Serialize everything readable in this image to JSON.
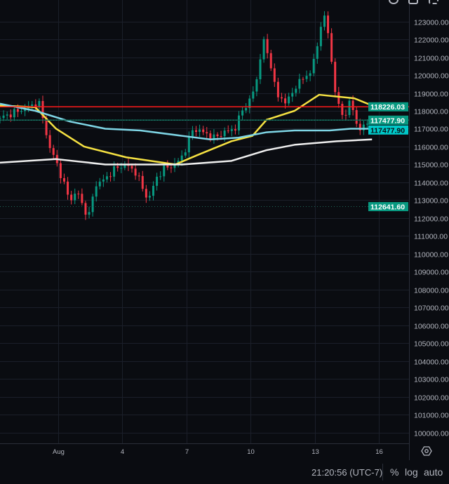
{
  "toolbar": {
    "icons": [
      "settings-icon",
      "camera-icon",
      "fullscreen-icon"
    ]
  },
  "bottom_bar": {
    "clock": "21:20:56 (UTC-7)",
    "percent_label": "%",
    "log_label": "log",
    "auto_label": "auto"
  },
  "colors": {
    "background": "#0a0c11",
    "grid": "#1b1f2a",
    "up": "#089981",
    "down": "#f23645",
    "ma_yellow": "#f5e142",
    "ma_cyan": "#7fd6e6",
    "ma_white": "#f0f0f0",
    "hline_red": "#ff1a1a",
    "hline_green": "#0f5f4e",
    "label_green": "#089981",
    "label_cyan": "#00c8c8"
  },
  "chart_data": {
    "type": "candlestick",
    "title": "",
    "xlabel": "",
    "ylabel": "",
    "x_unit": "day of August",
    "xlim": [
      -1.72,
      17.4
    ],
    "ylim": [
      99400,
      124200
    ],
    "x_ticks": [
      {
        "value": 1,
        "label": "Aug"
      },
      {
        "value": 4,
        "label": "4"
      },
      {
        "value": 7,
        "label": "7"
      },
      {
        "value": 10,
        "label": "10"
      },
      {
        "value": 13,
        "label": "13"
      },
      {
        "value": 16,
        "label": "16"
      }
    ],
    "y_ticks": [
      100000,
      101000,
      102000,
      103000,
      104000,
      105000,
      106000,
      107000,
      108000,
      109000,
      110000,
      111000,
      112000,
      113000,
      114000,
      115000,
      116000,
      117000,
      118000,
      119000,
      120000,
      121000,
      122000,
      123000
    ],
    "y_tick_labels": [
      "100000.00",
      "101000.00",
      "102000.00",
      "103000.00",
      "104000.00",
      "105000.00",
      "106000.00",
      "107000.00",
      "108000.00",
      "109000.00",
      "110000.00",
      "111000.00",
      "112000.00",
      "113000.00",
      "114000.00",
      "115000.00",
      "116000.00",
      "117000.00",
      "118000.00",
      "119000.00",
      "120000.00",
      "121000.00",
      "122000.00",
      "123000.00"
    ],
    "grid": true,
    "price_path": [
      [
        -1.72,
        117600
      ],
      [
        -1.07,
        117900
      ],
      [
        -0.41,
        118200
      ],
      [
        0.08,
        118500
      ],
      [
        0.31,
        117500
      ],
      [
        0.57,
        116000
      ],
      [
        0.9,
        115200
      ],
      [
        1.23,
        114000
      ],
      [
        1.56,
        113000
      ],
      [
        1.89,
        113500
      ],
      [
        2.21,
        112500
      ],
      [
        2.44,
        112100
      ],
      [
        2.7,
        113800
      ],
      [
        3.2,
        114200
      ],
      [
        3.69,
        114800
      ],
      [
        4.18,
        115000
      ],
      [
        4.67,
        114500
      ],
      [
        5.0,
        113500
      ],
      [
        5.23,
        113000
      ],
      [
        5.56,
        114200
      ],
      [
        5.98,
        114800
      ],
      [
        6.48,
        115000
      ],
      [
        6.87,
        115600
      ],
      [
        7.3,
        117000
      ],
      [
        7.79,
        116800
      ],
      [
        8.28,
        116500
      ],
      [
        8.77,
        116800
      ],
      [
        9.26,
        117000
      ],
      [
        9.59,
        118000
      ],
      [
        9.92,
        118500
      ],
      [
        10.25,
        119500
      ],
      [
        10.57,
        122000
      ],
      [
        10.9,
        120800
      ],
      [
        11.23,
        118800
      ],
      [
        11.72,
        118500
      ],
      [
        12.21,
        119600
      ],
      [
        12.7,
        120000
      ],
      [
        13.03,
        121000
      ],
      [
        13.3,
        123000
      ],
      [
        13.52,
        123300
      ],
      [
        13.75,
        121000
      ],
      [
        14.02,
        118500
      ],
      [
        14.34,
        117600
      ],
      [
        14.67,
        118600
      ],
      [
        15.0,
        117000
      ],
      [
        15.33,
        117100
      ],
      [
        15.59,
        117478
      ]
    ],
    "series": [
      {
        "name": "MA yellow",
        "points": [
          [
            -1.72,
            118300
          ],
          [
            -0.07,
            118200
          ],
          [
            0.9,
            117000
          ],
          [
            2.21,
            116000
          ],
          [
            4.18,
            115400
          ],
          [
            6.48,
            115000
          ],
          [
            7.46,
            115500
          ],
          [
            9.1,
            116300
          ],
          [
            10.08,
            116600
          ],
          [
            10.74,
            117500
          ],
          [
            12.05,
            118000
          ],
          [
            13.2,
            118900
          ],
          [
            14.02,
            118800
          ],
          [
            14.84,
            118700
          ],
          [
            15.67,
            118300
          ]
        ]
      },
      {
        "name": "MA cyan",
        "points": [
          [
            -1.72,
            118400
          ],
          [
            -0.07,
            118000
          ],
          [
            1.56,
            117400
          ],
          [
            3.2,
            117000
          ],
          [
            4.84,
            116900
          ],
          [
            6.8,
            116600
          ],
          [
            8.11,
            116400
          ],
          [
            9.43,
            116500
          ],
          [
            10.74,
            116800
          ],
          [
            12.05,
            116900
          ],
          [
            13.69,
            116900
          ],
          [
            14.67,
            117000
          ],
          [
            15.67,
            117000
          ]
        ]
      },
      {
        "name": "MA white",
        "points": [
          [
            -1.72,
            115100
          ],
          [
            0.9,
            115300
          ],
          [
            3.2,
            115000
          ],
          [
            4.84,
            115000
          ],
          [
            6.8,
            115000
          ],
          [
            9.1,
            115200
          ],
          [
            10.74,
            115800
          ],
          [
            12.05,
            116100
          ],
          [
            14.02,
            116300
          ],
          [
            15.67,
            116400
          ]
        ]
      }
    ],
    "horizontal_lines": [
      {
        "name": "red-level",
        "price": 118226.03,
        "label": "118226.03",
        "color": "#ff1a1a",
        "label_bg": "#089981"
      },
      {
        "name": "green-level",
        "price": 117477.9,
        "label": "117477.90",
        "color": "#0f5f4e",
        "label_bg": "#089981"
      },
      {
        "name": "last-price",
        "price": 117477.9,
        "label": "117477.90",
        "color": "#2a8a80",
        "label_bg": "#00c8c8",
        "dotted": true
      },
      {
        "name": "low-level",
        "price": 112641.6,
        "label": "112641.60",
        "color": "#1f6a5a",
        "label_bg": "#089981",
        "dotted": true
      }
    ]
  }
}
